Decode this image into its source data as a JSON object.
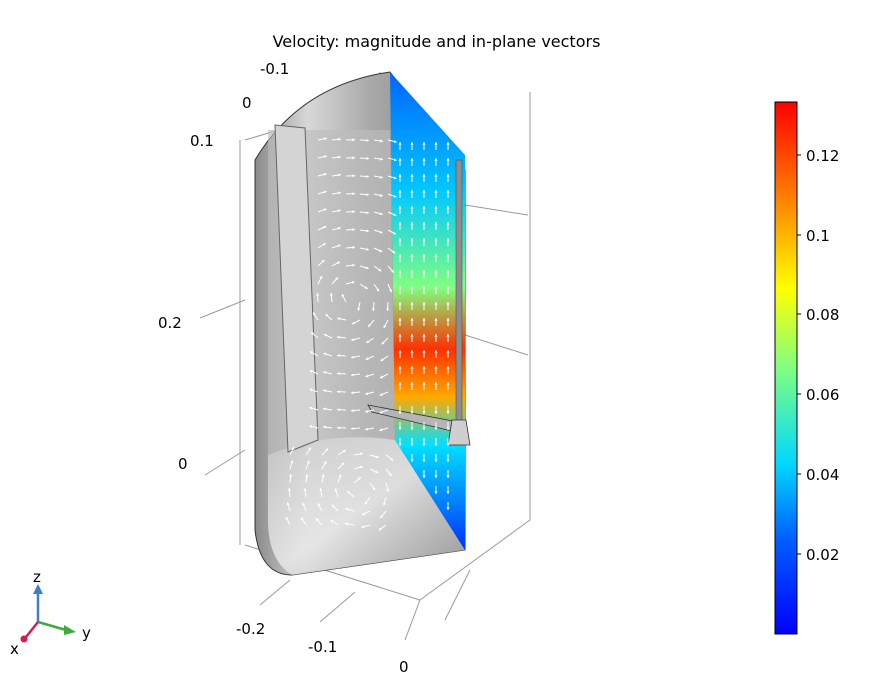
{
  "title": "Velocity: magnitude and in-plane vectors",
  "axis_ticks": {
    "top_y": [
      "-0.1",
      "0"
    ],
    "z_left": [
      "0.1",
      "0.2",
      "0"
    ],
    "bottom_x": [
      "-0.2",
      "-0.1",
      "0"
    ]
  },
  "colorbar": {
    "ticks": [
      "0.12",
      "0.1",
      "0.08",
      "0.06",
      "0.04",
      "0.02"
    ],
    "colors": [
      "#0000ff",
      "#00a0ff",
      "#00ffff",
      "#80ff80",
      "#ffff00",
      "#ff8000",
      "#ff0000"
    ]
  },
  "triad": {
    "z_label": "z",
    "y_label": "y",
    "x_label": "x",
    "z_color": "#3a7fc1",
    "y_color": "#3faa3f",
    "x_color": "#d02050"
  }
}
